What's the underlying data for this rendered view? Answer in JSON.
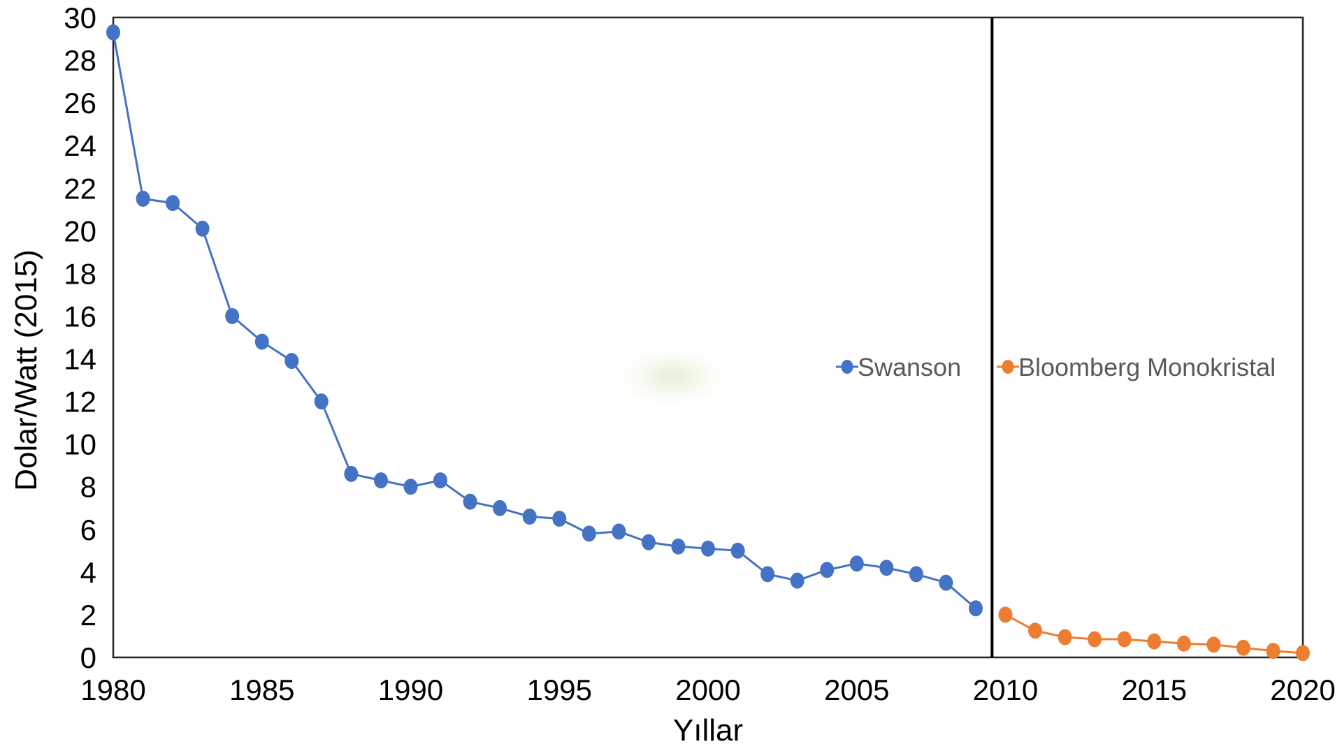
{
  "chart_data": {
    "type": "line",
    "title": "",
    "xlabel": "Yıllar",
    "ylabel": "Dolar/Watt (2015)",
    "xlim": [
      1980,
      2020
    ],
    "ylim": [
      0,
      30
    ],
    "x_ticks": [
      1980,
      1985,
      1990,
      1995,
      2000,
      2005,
      2010,
      2015,
      2020
    ],
    "y_ticks": [
      0,
      2,
      4,
      6,
      8,
      10,
      12,
      14,
      16,
      18,
      20,
      22,
      24,
      26,
      28,
      30
    ],
    "grid": false,
    "legend_position": "inside-middle-right",
    "divider_year": 2009.55,
    "divider_color": "#000000",
    "series": [
      {
        "name": "Swanson",
        "color": "#4472C4",
        "x": [
          1980,
          1981,
          1982,
          1983,
          1984,
          1985,
          1986,
          1987,
          1988,
          1989,
          1990,
          1991,
          1992,
          1993,
          1994,
          1995,
          1996,
          1997,
          1998,
          1999,
          2000,
          2001,
          2002,
          2003,
          2004,
          2005,
          2006,
          2007,
          2008,
          2009
        ],
        "values": [
          29.3,
          21.5,
          21.3,
          20.1,
          16.0,
          14.8,
          13.9,
          12.0,
          8.6,
          8.3,
          8.0,
          8.3,
          7.3,
          7.0,
          6.6,
          6.5,
          5.8,
          5.9,
          5.4,
          5.2,
          5.1,
          5.0,
          3.9,
          3.6,
          4.1,
          4.4,
          4.2,
          3.9,
          3.5,
          2.3
        ]
      },
      {
        "name": "Bloomberg Monokristal",
        "color": "#ED7D31",
        "x": [
          2010,
          2011,
          2012,
          2013,
          2014,
          2015,
          2016,
          2017,
          2018,
          2019,
          2020
        ],
        "values": [
          2.0,
          1.25,
          0.95,
          0.85,
          0.85,
          0.75,
          0.65,
          0.6,
          0.45,
          0.3,
          0.2
        ]
      }
    ]
  },
  "styles": {
    "axis_line_color": "#262626",
    "tick_label_color": "#000000",
    "legend_text_color": "#595959",
    "background_color": "#ffffff"
  }
}
